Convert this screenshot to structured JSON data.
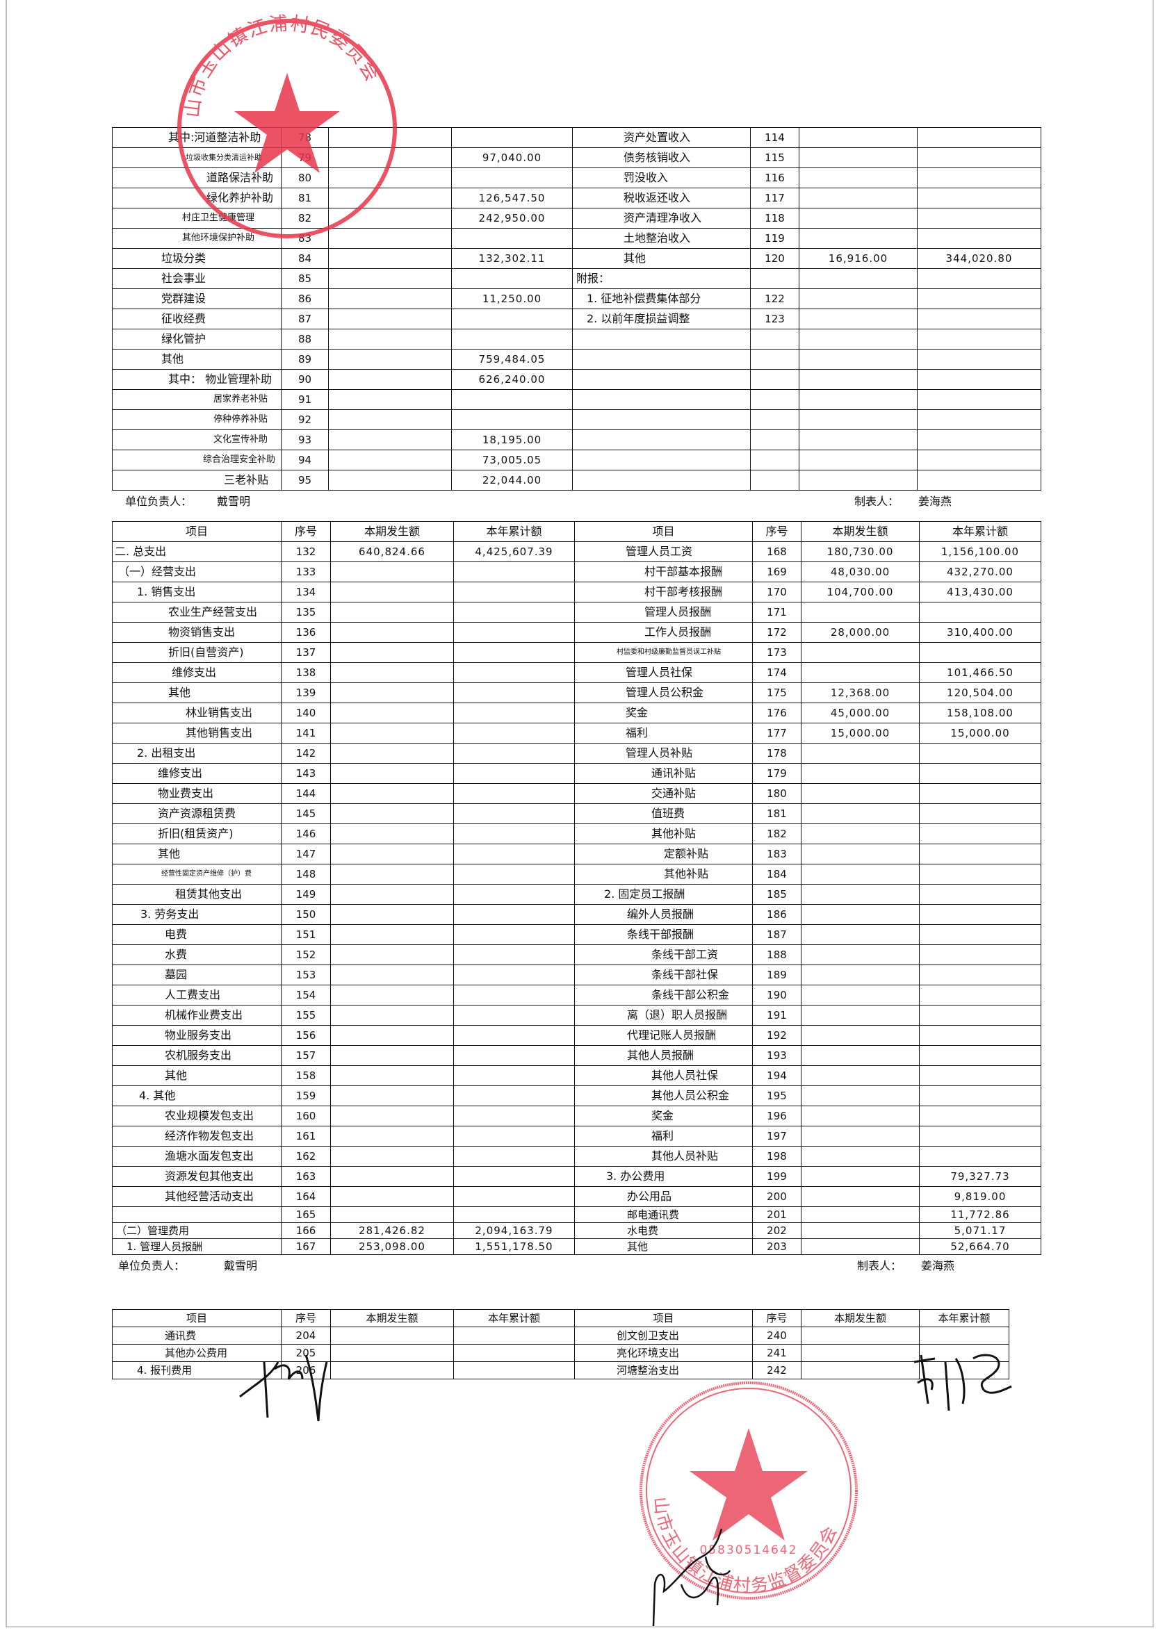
{
  "headers": [
    "项目",
    "序号",
    "本期发生额",
    "本年累计额",
    "项目",
    "序号",
    "本期发生额",
    "本年累计额"
  ],
  "table1": {
    "rows": [
      [
        "其中:河道整洁补助",
        "78",
        "",
        "",
        "资产处置收入",
        "114",
        "",
        ""
      ],
      [
        "垃圾收集分类清运补助",
        "79",
        "",
        "97,040.00",
        "债务核销收入",
        "115",
        "",
        ""
      ],
      [
        "道路保洁补助",
        "80",
        "",
        "",
        "罚没收入",
        "116",
        "",
        ""
      ],
      [
        "绿化养护补助",
        "81",
        "",
        "126,547.50",
        "税收返还收入",
        "117",
        "",
        ""
      ],
      [
        "村庄卫生健康管理",
        "82",
        "",
        "242,950.00",
        "资产清理净收入",
        "118",
        "",
        ""
      ],
      [
        "其他环境保护补助",
        "83",
        "",
        "",
        "土地整治收入",
        "119",
        "",
        ""
      ],
      [
        "垃圾分类",
        "84",
        "",
        "132,302.11",
        "其他",
        "120",
        "16,916.00",
        "344,020.80"
      ],
      [
        "社会事业",
        "85",
        "",
        "",
        "附报：",
        "",
        "",
        ""
      ],
      [
        "党群建设",
        "86",
        "",
        "11,250.00",
        "1. 征地补偿费集体部分",
        "122",
        "",
        ""
      ],
      [
        "征收经费",
        "87",
        "",
        "",
        "2. 以前年度损益调整",
        "123",
        "",
        ""
      ],
      [
        "绿化管护",
        "88",
        "",
        "",
        "",
        "",
        "",
        ""
      ],
      [
        "其他",
        "89",
        "",
        "759,484.05",
        "",
        "",
        "",
        ""
      ],
      [
        "其中： 物业管理补助",
        "90",
        "",
        "626,240.00",
        "",
        "",
        "",
        ""
      ],
      [
        "居家养老补贴",
        "91",
        "",
        "",
        "",
        "",
        "",
        ""
      ],
      [
        "停种停养补贴",
        "92",
        "",
        "",
        "",
        "",
        "",
        ""
      ],
      [
        "文化宣传补助",
        "93",
        "",
        "18,195.00",
        "",
        "",
        "",
        ""
      ],
      [
        "综合治理安全补助",
        "94",
        "",
        "73,005.05",
        "",
        "",
        "",
        ""
      ],
      [
        "三老补贴",
        "95",
        "",
        "22,044.00",
        "",
        "",
        "",
        ""
      ]
    ]
  },
  "signature_line_1": {
    "leader_label": "单位负责人：",
    "leader_name": "戴雪明",
    "preparer_label": "制表人：",
    "preparer_name": "姜海燕"
  },
  "table2": {
    "rows": [
      [
        "二. 总支出",
        "132",
        "640,824.66",
        "4,425,607.39",
        "管理人员工资",
        "168",
        "180,730.00",
        "1,156,100.00"
      ],
      [
        "（一）经营支出",
        "133",
        "",
        "",
        "村干部基本报酬",
        "169",
        "48,030.00",
        "432,270.00"
      ],
      [
        "1. 销售支出",
        "134",
        "",
        "",
        "村干部考核报酬",
        "170",
        "104,700.00",
        "413,430.00"
      ],
      [
        "农业生产经营支出",
        "135",
        "",
        "",
        "管理人员报酬",
        "171",
        "",
        ""
      ],
      [
        "物资销售支出",
        "136",
        "",
        "",
        "工作人员报酬",
        "172",
        "28,000.00",
        "310,400.00"
      ],
      [
        "折旧(自营资产)",
        "137",
        "",
        "",
        "村监委和村级廉勤监督员误工补贴",
        "173",
        "",
        ""
      ],
      [
        "维修支出",
        "138",
        "",
        "",
        "管理人员社保",
        "174",
        "",
        "101,466.50"
      ],
      [
        "其他",
        "139",
        "",
        "",
        "管理人员公积金",
        "175",
        "12,368.00",
        "120,504.00"
      ],
      [
        "林业销售支出",
        "140",
        "",
        "",
        "奖金",
        "176",
        "45,000.00",
        "158,108.00"
      ],
      [
        "其他销售支出",
        "141",
        "",
        "",
        "福利",
        "177",
        "15,000.00",
        "15,000.00"
      ],
      [
        "2. 出租支出",
        "142",
        "",
        "",
        "管理人员补贴",
        "178",
        "",
        ""
      ],
      [
        "维修支出",
        "143",
        "",
        "",
        "通讯补贴",
        "179",
        "",
        ""
      ],
      [
        "物业费支出",
        "144",
        "",
        "",
        "交通补贴",
        "180",
        "",
        ""
      ],
      [
        "资产资源租赁费",
        "145",
        "",
        "",
        "值班费",
        "181",
        "",
        ""
      ],
      [
        "折旧(租赁资产)",
        "146",
        "",
        "",
        "其他补贴",
        "182",
        "",
        ""
      ],
      [
        "其他",
        "147",
        "",
        "",
        "定额补贴",
        "183",
        "",
        ""
      ],
      [
        "经营性固定资产维修（护）费",
        "148",
        "",
        "",
        "其他补贴",
        "184",
        "",
        ""
      ],
      [
        "租赁其他支出",
        "149",
        "",
        "",
        "2. 固定员工报酬",
        "185",
        "",
        ""
      ],
      [
        "3. 劳务支出",
        "150",
        "",
        "",
        "编外人员报酬",
        "186",
        "",
        ""
      ],
      [
        "电费",
        "151",
        "",
        "",
        "条线干部报酬",
        "187",
        "",
        ""
      ],
      [
        "水费",
        "152",
        "",
        "",
        "条线干部工资",
        "188",
        "",
        ""
      ],
      [
        "墓园",
        "153",
        "",
        "",
        "条线干部社保",
        "189",
        "",
        ""
      ],
      [
        "人工费支出",
        "154",
        "",
        "",
        "条线干部公积金",
        "190",
        "",
        ""
      ],
      [
        "机械作业费支出",
        "155",
        "",
        "",
        "离（退）职人员报酬",
        "191",
        "",
        ""
      ],
      [
        "物业服务支出",
        "156",
        "",
        "",
        "代理记账人员报酬",
        "192",
        "",
        ""
      ],
      [
        "农机服务支出",
        "157",
        "",
        "",
        "其他人员报酬",
        "193",
        "",
        ""
      ],
      [
        "其他",
        "158",
        "",
        "",
        "其他人员社保",
        "194",
        "",
        ""
      ],
      [
        "4. 其他",
        "159",
        "",
        "",
        "其他人员公积金",
        "195",
        "",
        ""
      ],
      [
        "农业规模发包支出",
        "160",
        "",
        "",
        "奖金",
        "196",
        "",
        ""
      ],
      [
        "经济作物发包支出",
        "161",
        "",
        "",
        "福利",
        "197",
        "",
        ""
      ],
      [
        "渔塘水面发包支出",
        "162",
        "",
        "",
        "其他人员补贴",
        "198",
        "",
        ""
      ],
      [
        "资源发包其他支出",
        "163",
        "",
        "",
        "3. 办公费用",
        "199",
        "",
        "79,327.73"
      ],
      [
        "其他经营活动支出",
        "164",
        "",
        "",
        "办公用品",
        "200",
        "",
        "9,819.00"
      ],
      [
        "",
        "165",
        "",
        "",
        "邮电通讯费",
        "201",
        "",
        "11,772.86"
      ],
      [
        "（二）管理费用",
        "166",
        "281,426.82",
        "2,094,163.79",
        "水电费",
        "202",
        "",
        "5,071.17"
      ],
      [
        "1. 管理人员报酬",
        "167",
        "253,098.00",
        "1,551,178.50",
        "其他",
        "203",
        "",
        "52,664.70"
      ]
    ]
  },
  "signature_line_2": {
    "leader_label": "单位负责人：",
    "leader_name": "戴雪明",
    "preparer_label": "制表人：",
    "preparer_name": "姜海燕"
  },
  "table3": {
    "rows": [
      [
        "通讯费",
        "204",
        "",
        "",
        "创文创卫支出",
        "240",
        "",
        ""
      ],
      [
        "其他办公费用",
        "205",
        "",
        "",
        "亮化环境支出",
        "241",
        "",
        ""
      ],
      [
        "4. 报刊费用",
        "206",
        "",
        "",
        "河塘整治支出",
        "242",
        "",
        ""
      ]
    ]
  },
  "stamps": {
    "village_committee": "山市玉山镇江浦村民委员会",
    "supervision_committee": "山市玉山镇江浦村务监督委员会",
    "supervision_code": "05830514642",
    "color": "#e8344a"
  }
}
